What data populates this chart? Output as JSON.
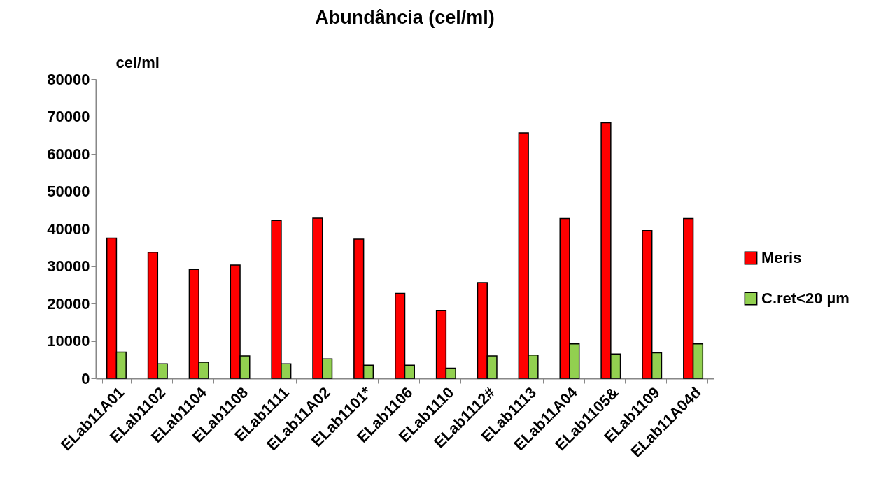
{
  "chart_data": {
    "type": "bar",
    "title": "Abundância  (cel/ml)",
    "ylabel": "cel/ml",
    "categories": [
      "ELab11A01",
      "ELab1102",
      "ELab1104",
      "ELab1108",
      "ELab1111",
      "ELab11A02",
      "ELab1101*",
      "ELab1106",
      "ELab1110",
      "ELab1112#",
      "ELab1113",
      "ELab11A04",
      "ELab1105&",
      "ELab1109",
      "ELab11A04d"
    ],
    "series": [
      {
        "name": "Meris",
        "color": "#ff0000",
        "values": [
          37500,
          33700,
          29100,
          30300,
          42200,
          42800,
          37200,
          22700,
          18100,
          25600,
          65600,
          42700,
          68300,
          39500,
          42700
        ]
      },
      {
        "name": "C.ret<20 µm",
        "color": "#92d050",
        "values": [
          7000,
          3900,
          4300,
          6000,
          3900,
          5200,
          3500,
          3500,
          2700,
          6000,
          6200,
          9200,
          6500,
          6800,
          9200
        ]
      }
    ],
    "ylim": [
      0,
      80000
    ],
    "yticks": [
      0,
      10000,
      20000,
      30000,
      40000,
      50000,
      60000,
      70000,
      80000
    ],
    "grid": false,
    "legend": "right"
  }
}
